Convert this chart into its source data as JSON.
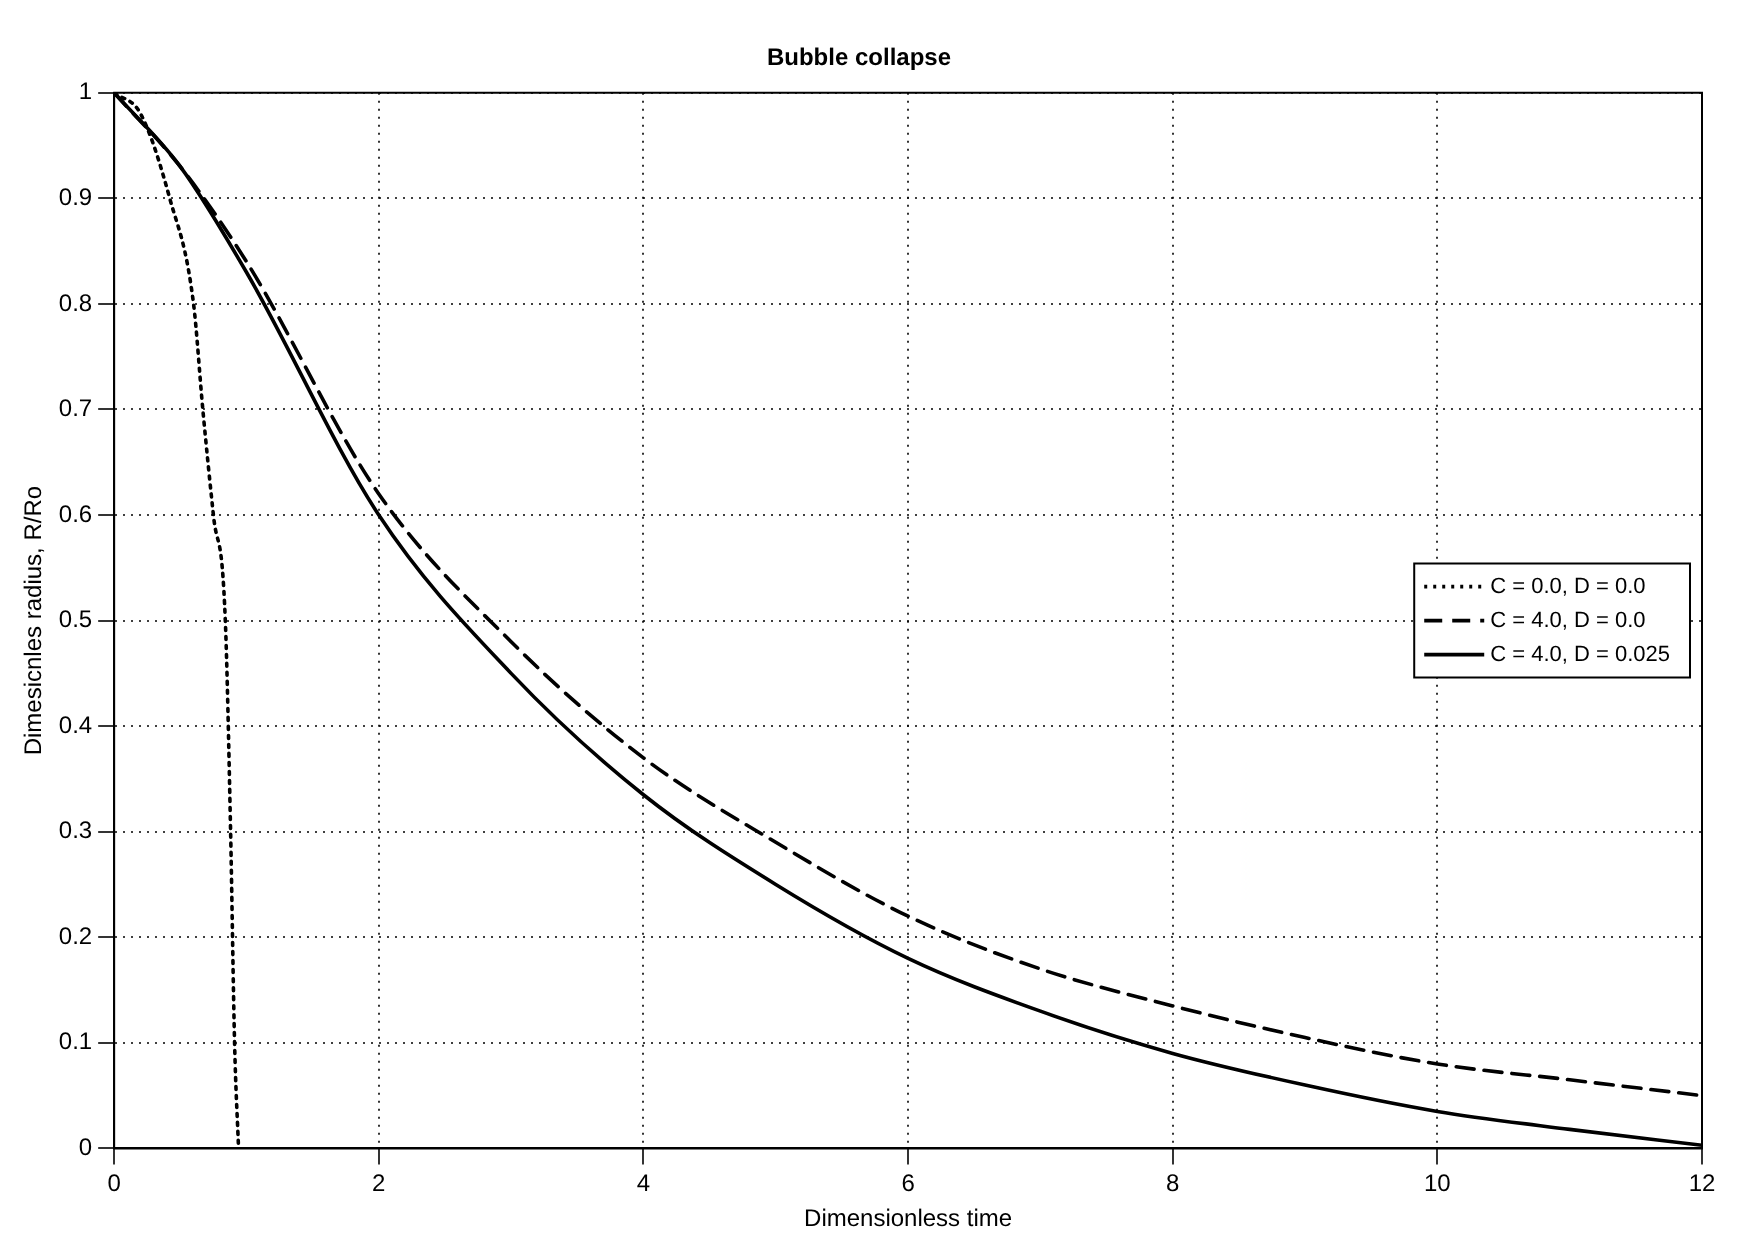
{
  "chart_data": {
    "type": "line",
    "title": "Bubble collapse",
    "xlabel": "Dimensionless time",
    "ylabel": "Dimesicnles radius, R/Ro",
    "xlim": [
      0,
      12
    ],
    "xticks": [
      0,
      2,
      4,
      6,
      8,
      10,
      12
    ],
    "ylim": [
      0,
      1
    ],
    "yticks": [
      0,
      0.1,
      0.2,
      0.3,
      0.4,
      0.5,
      0.6,
      0.7,
      0.8,
      0.9,
      1
    ],
    "grid": true,
    "legend": "right",
    "marker": "none",
    "series": [
      {
        "name": "C = 0.0, D = 0.0",
        "color": "#000000",
        "line_style": "dotted",
        "x": [
          0,
          0.2,
          0.42,
          0.6,
          0.67,
          0.75,
          0.84,
          0.88,
          0.91,
          0.94
        ],
        "values": [
          1,
          0.98,
          0.9,
          0.8,
          0.7,
          0.6,
          0.5,
          0.3,
          0.1,
          0
        ]
      },
      {
        "name": "C = 4.0, D = 0.0",
        "color": "#000000",
        "line_style": "dashed",
        "x": [
          0,
          0.5,
          1,
          2,
          3,
          4,
          5,
          6,
          7,
          8,
          9,
          10,
          11,
          12
        ],
        "values": [
          1,
          0.93,
          0.84,
          0.62,
          0.48,
          0.37,
          0.29,
          0.22,
          0.17,
          0.135,
          0.105,
          0.08,
          0.065,
          0.05
        ]
      },
      {
        "name": "C = 4.0, D = 0.025",
        "color": "#000000",
        "line_style": "solid",
        "x": [
          0,
          0.5,
          1,
          2,
          3,
          4,
          5,
          6,
          7,
          8,
          9,
          10,
          11,
          12
        ],
        "values": [
          1,
          0.93,
          0.83,
          0.6,
          0.45,
          0.335,
          0.25,
          0.18,
          0.13,
          0.09,
          0.06,
          0.035,
          0.018,
          0.003
        ]
      }
    ]
  }
}
